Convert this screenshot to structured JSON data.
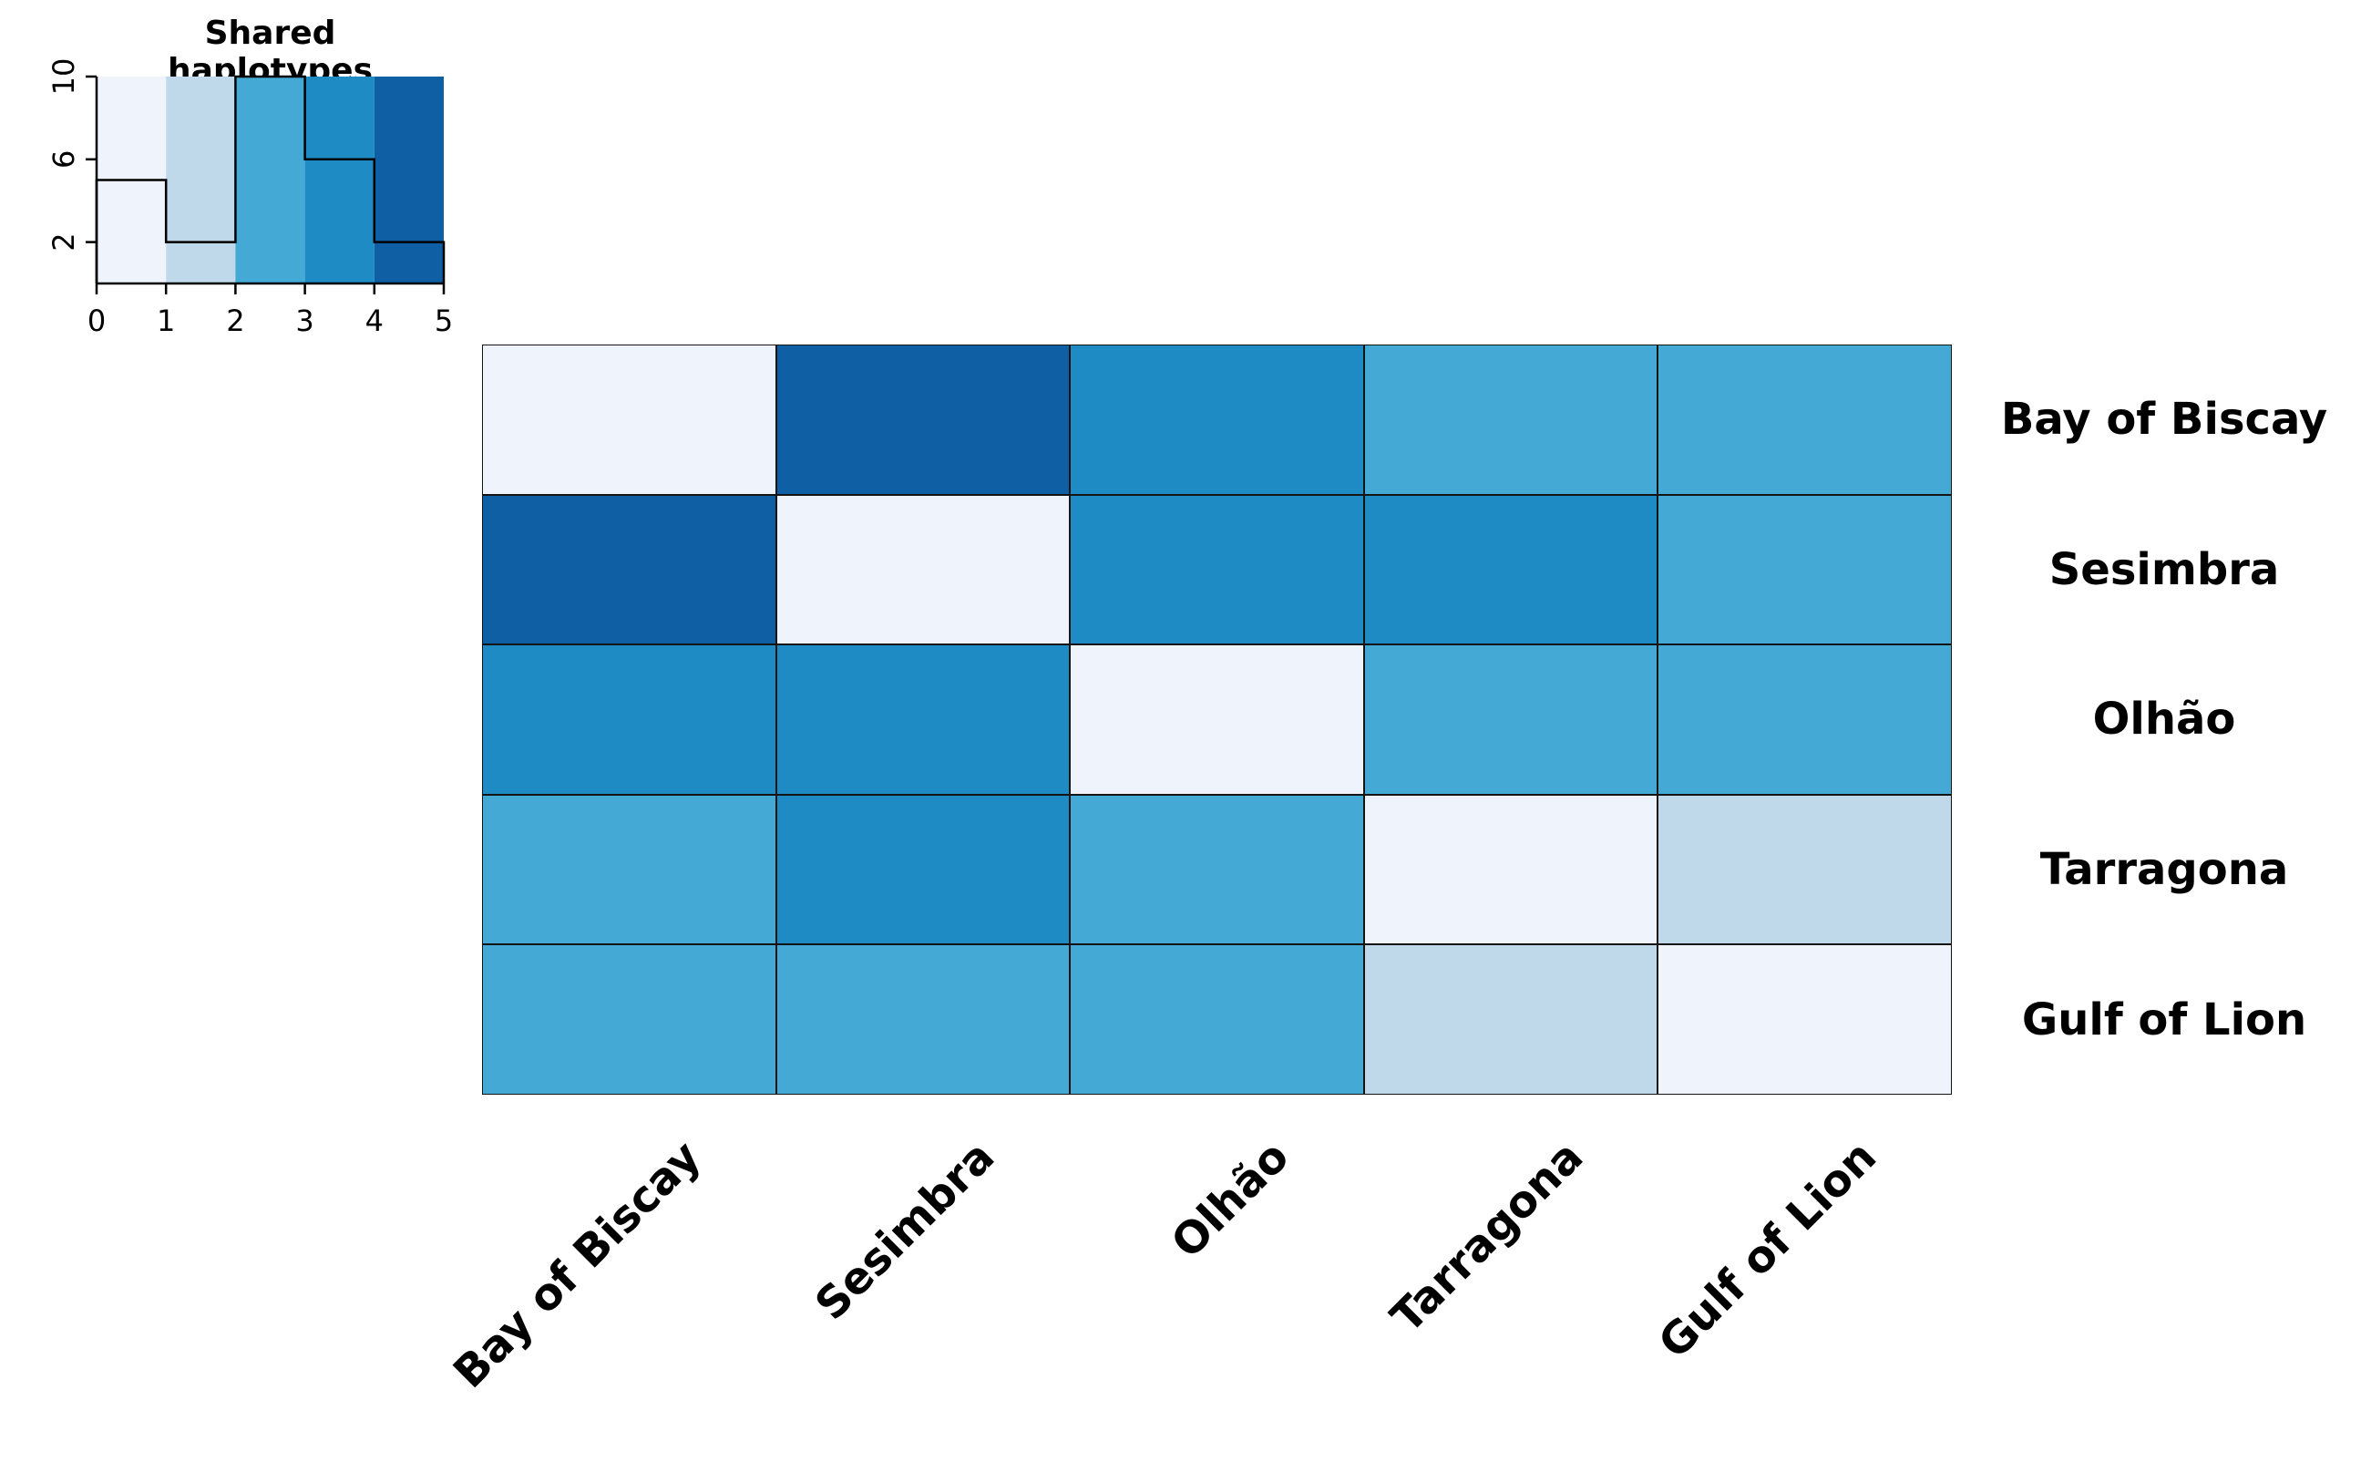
{
  "chart_data": {
    "type": "heatmap",
    "title": "Shared haplotypes",
    "categories": [
      "Bay of Biscay",
      "Sesimbra",
      "Olhão",
      "Tarragona",
      "Gulf of Lion"
    ],
    "matrix": [
      [
        0,
        5,
        4,
        3,
        3
      ],
      [
        5,
        0,
        4,
        4,
        3
      ],
      [
        4,
        4,
        0,
        3,
        3
      ],
      [
        3,
        4,
        3,
        0,
        2
      ],
      [
        3,
        3,
        3,
        2,
        0
      ]
    ],
    "palette": [
      "#EFF3FB",
      "#BFD8EA",
      "#44A9D5",
      "#1E8BC4",
      "#0F5FA5"
    ],
    "color_bin_breaks": [
      0,
      1,
      2,
      3,
      4,
      5
    ],
    "legend": {
      "title": "Shared haplotypes",
      "histogram_counts": [
        5,
        2,
        10,
        6,
        2
      ],
      "x_ticks": [
        0,
        1,
        2,
        3,
        4,
        5
      ],
      "y_ticks": [
        2,
        6,
        10
      ],
      "xlim": [
        0,
        5
      ],
      "ylim": [
        0,
        10
      ]
    },
    "layout_hints": {
      "legend_position": "top-left",
      "row_labels_position": "right",
      "col_labels_rotation_deg": -45,
      "grid": "off",
      "line_color": "#000000"
    }
  }
}
